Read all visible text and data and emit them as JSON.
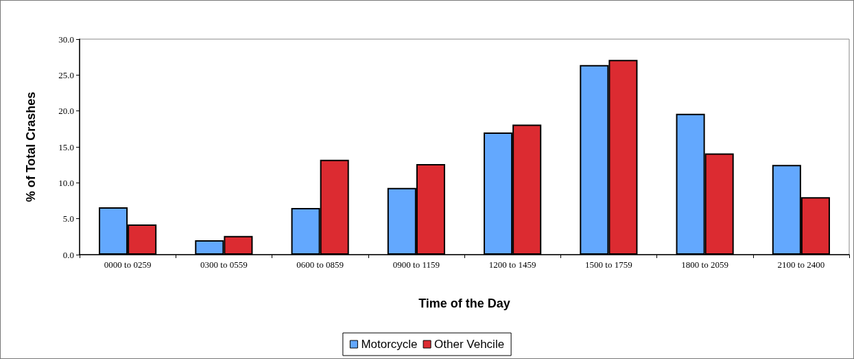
{
  "chart_data": {
    "type": "bar",
    "xlabel": "Time of the Day",
    "ylabel": "% of Total Crashes",
    "categories": [
      "0000 to 0259",
      "0300 to 0559",
      "0600 to 0859",
      "0900 to 1159",
      "1200 to 1459",
      "1500 to 1759",
      "1800 to 2059",
      "2100 to 2400"
    ],
    "series": [
      {
        "name": "Motorcycle",
        "color": "#63a8fe",
        "values": [
          6.6,
          2.0,
          6.5,
          9.3,
          17.0,
          26.4,
          19.6,
          12.5
        ]
      },
      {
        "name": "Other Vehcile",
        "color": "#dc2b31",
        "values": [
          4.2,
          2.6,
          13.2,
          12.6,
          18.1,
          27.1,
          14.1,
          8.0
        ]
      }
    ],
    "ylim": [
      0,
      30
    ],
    "yticks": [
      {
        "value": 0,
        "label": "0.0"
      },
      {
        "value": 5,
        "label": "5.0"
      },
      {
        "value": 10,
        "label": "10.0"
      },
      {
        "value": 15,
        "label": "15.0"
      },
      {
        "value": 20,
        "label": "20.0"
      },
      {
        "value": 25,
        "label": "25.0"
      },
      {
        "value": 30,
        "label": "30.0"
      }
    ],
    "grid": false,
    "legend": "bottom"
  }
}
